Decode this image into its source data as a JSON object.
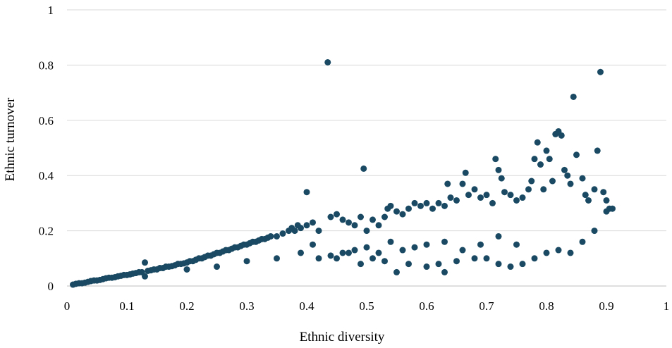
{
  "chart_data": {
    "type": "scatter",
    "title": "",
    "xlabel": "Ethnic diversity",
    "ylabel": "Ethnic turnover",
    "xlim": [
      0,
      1
    ],
    "ylim": [
      0,
      1
    ],
    "x_ticks": [
      "0",
      "0.1",
      "0.2",
      "0.3",
      "0.4",
      "0.5",
      "0.6",
      "0.7",
      "0.8",
      "0.9",
      "1"
    ],
    "y_ticks": [
      "0",
      "0.2",
      "0.4",
      "0.6",
      "0.8",
      "1"
    ],
    "grid": "horizontal",
    "legend": "none",
    "marker_color": "#1a4a63",
    "series": [
      {
        "points": [
          [
            0.01,
            0.005
          ],
          [
            0.015,
            0.008
          ],
          [
            0.02,
            0.01
          ],
          [
            0.025,
            0.01
          ],
          [
            0.03,
            0.012
          ],
          [
            0.035,
            0.015
          ],
          [
            0.04,
            0.018
          ],
          [
            0.045,
            0.02
          ],
          [
            0.05,
            0.02
          ],
          [
            0.055,
            0.022
          ],
          [
            0.06,
            0.025
          ],
          [
            0.065,
            0.028
          ],
          [
            0.07,
            0.03
          ],
          [
            0.075,
            0.03
          ],
          [
            0.08,
            0.032
          ],
          [
            0.085,
            0.035
          ],
          [
            0.09,
            0.037
          ],
          [
            0.095,
            0.04
          ],
          [
            0.1,
            0.04
          ],
          [
            0.105,
            0.042
          ],
          [
            0.11,
            0.045
          ],
          [
            0.115,
            0.047
          ],
          [
            0.12,
            0.05
          ],
          [
            0.125,
            0.05
          ],
          [
            0.13,
            0.085
          ],
          [
            0.13,
            0.035
          ],
          [
            0.135,
            0.055
          ],
          [
            0.14,
            0.057
          ],
          [
            0.145,
            0.06
          ],
          [
            0.15,
            0.06
          ],
          [
            0.155,
            0.065
          ],
          [
            0.16,
            0.065
          ],
          [
            0.165,
            0.07
          ],
          [
            0.17,
            0.07
          ],
          [
            0.175,
            0.072
          ],
          [
            0.18,
            0.075
          ],
          [
            0.185,
            0.08
          ],
          [
            0.19,
            0.08
          ],
          [
            0.195,
            0.082
          ],
          [
            0.2,
            0.085
          ],
          [
            0.2,
            0.06
          ],
          [
            0.205,
            0.09
          ],
          [
            0.21,
            0.09
          ],
          [
            0.215,
            0.095
          ],
          [
            0.22,
            0.1
          ],
          [
            0.225,
            0.1
          ],
          [
            0.23,
            0.105
          ],
          [
            0.235,
            0.11
          ],
          [
            0.24,
            0.11
          ],
          [
            0.245,
            0.115
          ],
          [
            0.25,
            0.12
          ],
          [
            0.25,
            0.07
          ],
          [
            0.255,
            0.12
          ],
          [
            0.26,
            0.125
          ],
          [
            0.265,
            0.13
          ],
          [
            0.27,
            0.13
          ],
          [
            0.275,
            0.135
          ],
          [
            0.28,
            0.14
          ],
          [
            0.285,
            0.14
          ],
          [
            0.29,
            0.145
          ],
          [
            0.295,
            0.15
          ],
          [
            0.3,
            0.15
          ],
          [
            0.3,
            0.09
          ],
          [
            0.305,
            0.155
          ],
          [
            0.31,
            0.16
          ],
          [
            0.315,
            0.16
          ],
          [
            0.32,
            0.165
          ],
          [
            0.325,
            0.17
          ],
          [
            0.33,
            0.17
          ],
          [
            0.335,
            0.175
          ],
          [
            0.34,
            0.18
          ],
          [
            0.35,
            0.18
          ],
          [
            0.35,
            0.1
          ],
          [
            0.36,
            0.19
          ],
          [
            0.37,
            0.2
          ],
          [
            0.375,
            0.21
          ],
          [
            0.38,
            0.2
          ],
          [
            0.385,
            0.22
          ],
          [
            0.39,
            0.21
          ],
          [
            0.4,
            0.22
          ],
          [
            0.4,
            0.34
          ],
          [
            0.41,
            0.23
          ],
          [
            0.42,
            0.2
          ],
          [
            0.435,
            0.81
          ],
          [
            0.44,
            0.25
          ],
          [
            0.45,
            0.26
          ],
          [
            0.46,
            0.24
          ],
          [
            0.47,
            0.23
          ],
          [
            0.48,
            0.22
          ],
          [
            0.49,
            0.25
          ],
          [
            0.495,
            0.425
          ],
          [
            0.5,
            0.2
          ],
          [
            0.51,
            0.24
          ],
          [
            0.52,
            0.22
          ],
          [
            0.53,
            0.25
          ],
          [
            0.535,
            0.28
          ],
          [
            0.54,
            0.29
          ],
          [
            0.55,
            0.27
          ],
          [
            0.56,
            0.26
          ],
          [
            0.57,
            0.28
          ],
          [
            0.58,
            0.3
          ],
          [
            0.59,
            0.29
          ],
          [
            0.6,
            0.3
          ],
          [
            0.61,
            0.28
          ],
          [
            0.62,
            0.3
          ],
          [
            0.63,
            0.29
          ],
          [
            0.635,
            0.37
          ],
          [
            0.64,
            0.32
          ],
          [
            0.65,
            0.31
          ],
          [
            0.66,
            0.37
          ],
          [
            0.665,
            0.41
          ],
          [
            0.67,
            0.33
          ],
          [
            0.68,
            0.35
          ],
          [
            0.69,
            0.32
          ],
          [
            0.7,
            0.33
          ],
          [
            0.71,
            0.3
          ],
          [
            0.715,
            0.46
          ],
          [
            0.72,
            0.42
          ],
          [
            0.725,
            0.39
          ],
          [
            0.73,
            0.34
          ],
          [
            0.74,
            0.33
          ],
          [
            0.75,
            0.31
          ],
          [
            0.76,
            0.32
          ],
          [
            0.77,
            0.35
          ],
          [
            0.775,
            0.38
          ],
          [
            0.78,
            0.46
          ],
          [
            0.785,
            0.52
          ],
          [
            0.79,
            0.44
          ],
          [
            0.795,
            0.35
          ],
          [
            0.8,
            0.49
          ],
          [
            0.805,
            0.46
          ],
          [
            0.81,
            0.38
          ],
          [
            0.815,
            0.55
          ],
          [
            0.82,
            0.56
          ],
          [
            0.825,
            0.545
          ],
          [
            0.83,
            0.42
          ],
          [
            0.835,
            0.4
          ],
          [
            0.84,
            0.37
          ],
          [
            0.845,
            0.685
          ],
          [
            0.85,
            0.475
          ],
          [
            0.86,
            0.39
          ],
          [
            0.865,
            0.33
          ],
          [
            0.87,
            0.31
          ],
          [
            0.88,
            0.35
          ],
          [
            0.885,
            0.49
          ],
          [
            0.89,
            0.775
          ],
          [
            0.895,
            0.34
          ],
          [
            0.9,
            0.31
          ],
          [
            0.905,
            0.28
          ],
          [
            0.91,
            0.28
          ],
          [
            0.45,
            0.1
          ],
          [
            0.47,
            0.12
          ],
          [
            0.49,
            0.08
          ],
          [
            0.51,
            0.1
          ],
          [
            0.53,
            0.09
          ],
          [
            0.55,
            0.05
          ],
          [
            0.57,
            0.08
          ],
          [
            0.6,
            0.07
          ],
          [
            0.62,
            0.08
          ],
          [
            0.63,
            0.05
          ],
          [
            0.65,
            0.09
          ],
          [
            0.68,
            0.1
          ],
          [
            0.7,
            0.1
          ],
          [
            0.72,
            0.08
          ],
          [
            0.74,
            0.07
          ],
          [
            0.76,
            0.08
          ],
          [
            0.78,
            0.1
          ],
          [
            0.8,
            0.12
          ],
          [
            0.82,
            0.13
          ],
          [
            0.84,
            0.12
          ],
          [
            0.86,
            0.16
          ],
          [
            0.88,
            0.2
          ],
          [
            0.9,
            0.27
          ],
          [
            0.75,
            0.15
          ],
          [
            0.72,
            0.18
          ],
          [
            0.69,
            0.15
          ],
          [
            0.66,
            0.13
          ],
          [
            0.63,
            0.16
          ],
          [
            0.6,
            0.15
          ],
          [
            0.58,
            0.14
          ],
          [
            0.56,
            0.13
          ],
          [
            0.54,
            0.16
          ],
          [
            0.52,
            0.12
          ],
          [
            0.5,
            0.14
          ],
          [
            0.48,
            0.13
          ],
          [
            0.46,
            0.12
          ],
          [
            0.44,
            0.11
          ],
          [
            0.42,
            0.1
          ],
          [
            0.41,
            0.15
          ],
          [
            0.39,
            0.12
          ]
        ]
      }
    ]
  }
}
